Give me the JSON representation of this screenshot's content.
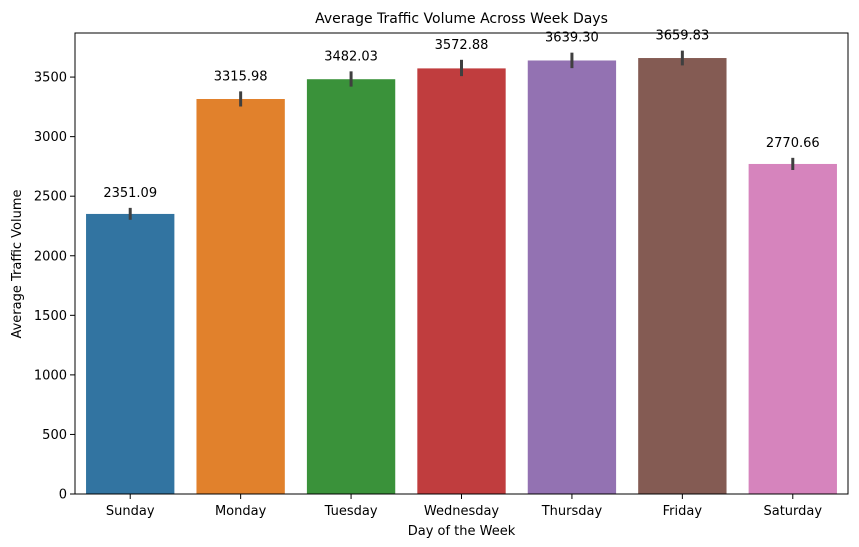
{
  "chart_data": {
    "type": "bar",
    "title": "Average Traffic Volume Across Week Days",
    "xlabel": "Day of the Week",
    "ylabel": "Average Traffic Volume",
    "categories": [
      "Sunday",
      "Monday",
      "Tuesday",
      "Wednesday",
      "Thursday",
      "Friday",
      "Saturday"
    ],
    "values": [
      2351.09,
      3315.98,
      3482.03,
      3572.88,
      3639.3,
      3659.83,
      2770.66
    ],
    "value_labels": [
      "2351.09",
      "3315.98",
      "3482.03",
      "3572.88",
      "3639.30",
      "3659.83",
      "2770.66"
    ],
    "error_intervals": [
      [
        2302,
        2402
      ],
      [
        3253,
        3380
      ],
      [
        3420,
        3548
      ],
      [
        3508,
        3645
      ],
      [
        3575,
        3705
      ],
      [
        3598,
        3722
      ],
      [
        2720,
        2822
      ]
    ],
    "colors": [
      "#3274a1",
      "#e1812c",
      "#3a923a",
      "#c03d3e",
      "#9372b2",
      "#845b53",
      "#d684bd"
    ],
    "ylim": [
      0,
      3870
    ],
    "yticks": [
      0,
      500,
      1000,
      1500,
      2000,
      2500,
      3000,
      3500
    ],
    "grid": false,
    "legend": "none"
  }
}
